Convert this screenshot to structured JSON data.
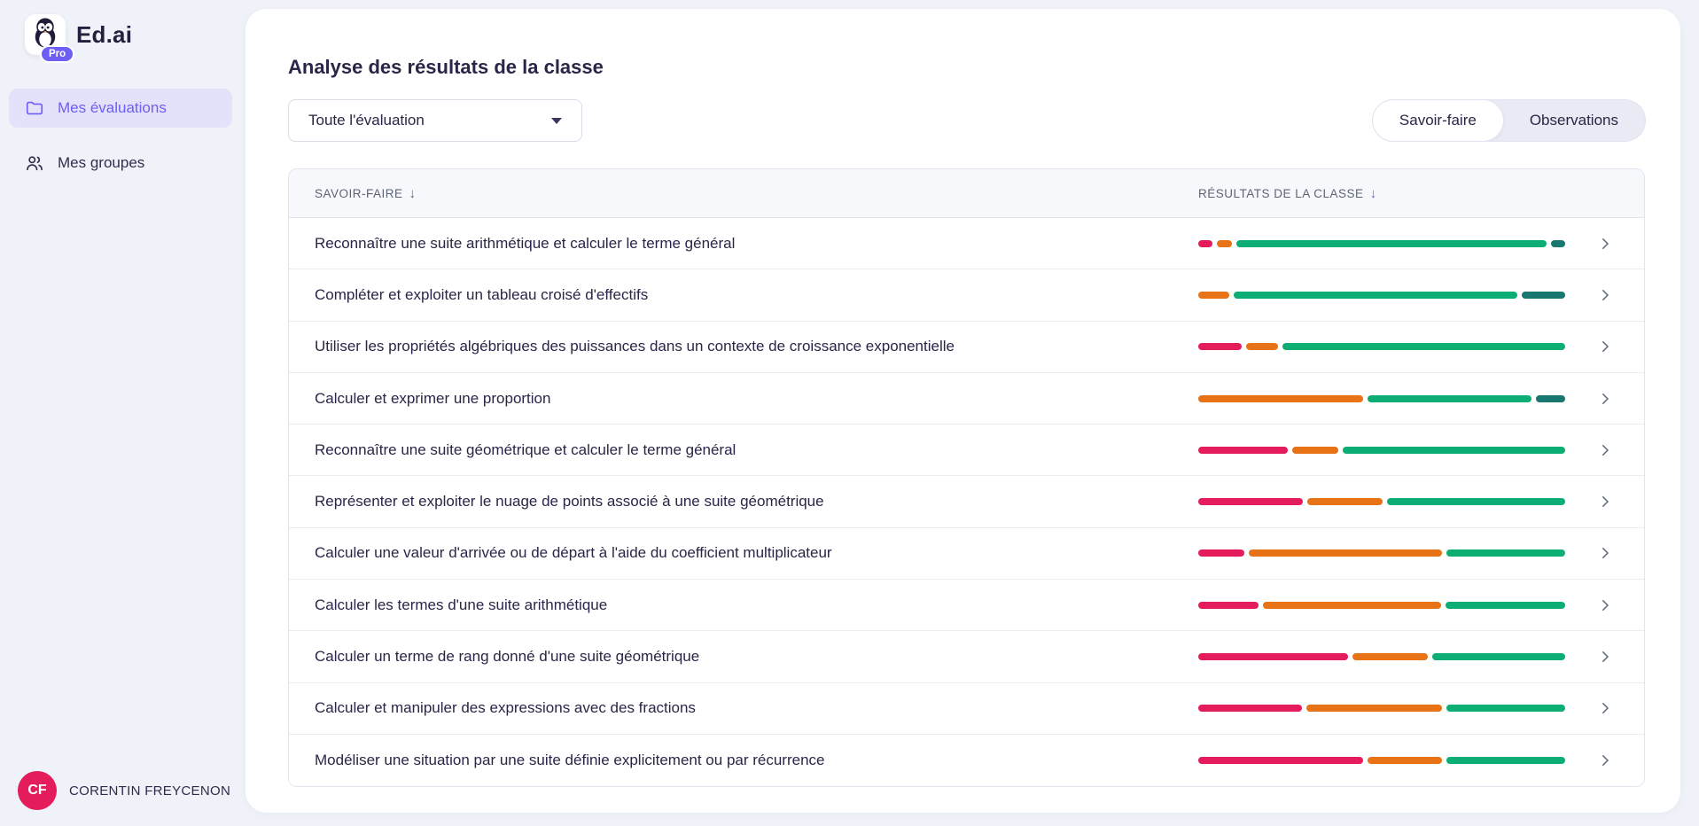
{
  "app": {
    "name": "Ed.ai",
    "badge": "Pro"
  },
  "sidebar": {
    "items": [
      {
        "label": "Mes évaluations",
        "icon": "folder-icon",
        "active": true
      },
      {
        "label": "Mes groupes",
        "icon": "users-icon",
        "active": false
      }
    ],
    "user": {
      "initials": "CF",
      "name": "CORENTIN FREYCENON"
    }
  },
  "main": {
    "title": "Analyse des résultats de la classe",
    "filter": {
      "value": "Toute l'évaluation"
    },
    "tabs": [
      {
        "label": "Savoir-faire",
        "active": true
      },
      {
        "label": "Observations",
        "active": false
      }
    ]
  },
  "table": {
    "sort_icon": "↓",
    "columns": [
      {
        "label": "Savoir-faire"
      },
      {
        "label": "Résultats de la classe"
      }
    ],
    "rows": [
      {
        "label": "Reconnaître une suite arithmétique et calculer le terme général",
        "segments": [
          {
            "level": "low",
            "pct": 4
          },
          {
            "level": "mid",
            "pct": 4
          },
          {
            "level": "high",
            "pct": 85
          },
          {
            "level": "vhigh",
            "pct": 4
          }
        ]
      },
      {
        "label": "Compléter et exploiter un tableau croisé d'effectifs",
        "segments": [
          {
            "level": "mid",
            "pct": 8.5
          },
          {
            "level": "high",
            "pct": 77.5
          },
          {
            "level": "vhigh",
            "pct": 12
          }
        ]
      },
      {
        "label": "Utiliser les propriétés algébriques des puissances dans un contexte de croissance exponentielle",
        "segments": [
          {
            "level": "low",
            "pct": 12
          },
          {
            "level": "mid",
            "pct": 8.5
          },
          {
            "level": "high",
            "pct": 77.5
          }
        ]
      },
      {
        "label": "Calculer et exprimer une proportion",
        "segments": [
          {
            "level": "mid",
            "pct": 45
          },
          {
            "level": "high",
            "pct": 44.5
          },
          {
            "level": "vhigh",
            "pct": 8
          }
        ]
      },
      {
        "label": "Reconnaître une suite géométrique et calculer le terme général",
        "segments": [
          {
            "level": "low",
            "pct": 24.5
          },
          {
            "level": "mid",
            "pct": 12.5
          },
          {
            "level": "high",
            "pct": 61
          }
        ]
      },
      {
        "label": "Représenter et exploiter le nuage de points associé à une suite géométrique",
        "segments": [
          {
            "level": "low",
            "pct": 28.5
          },
          {
            "level": "mid",
            "pct": 20.5
          },
          {
            "level": "high",
            "pct": 48.5
          }
        ]
      },
      {
        "label": "Calculer une valeur d'arrivée ou de départ à l'aide du coefficient multiplicateur",
        "segments": [
          {
            "level": "low",
            "pct": 12.5
          },
          {
            "level": "mid",
            "pct": 53
          },
          {
            "level": "high",
            "pct": 32.5
          }
        ]
      },
      {
        "label": "Calculer les termes d'une suite arithmétique",
        "segments": [
          {
            "level": "low",
            "pct": 16.5
          },
          {
            "level": "mid",
            "pct": 48.5
          },
          {
            "level": "high",
            "pct": 32.5
          }
        ]
      },
      {
        "label": "Calculer un terme de rang donné d'une suite géométrique",
        "segments": [
          {
            "level": "low",
            "pct": 41
          },
          {
            "level": "mid",
            "pct": 20.5
          },
          {
            "level": "high",
            "pct": 36.5
          }
        ]
      },
      {
        "label": "Calculer et manipuler des expressions avec des fractions",
        "segments": [
          {
            "level": "low",
            "pct": 28.5
          },
          {
            "level": "mid",
            "pct": 37
          },
          {
            "level": "high",
            "pct": 32.5
          }
        ]
      },
      {
        "label": "Modéliser une situation par une suite définie explicitement ou par récurrence",
        "segments": [
          {
            "level": "low",
            "pct": 45
          },
          {
            "level": "mid",
            "pct": 20.5
          },
          {
            "level": "high",
            "pct": 32.5
          }
        ]
      }
    ]
  },
  "colors": {
    "low": "#E41C5C",
    "mid": "#E87317",
    "high": "#0DAE74",
    "vhigh": "#18786F",
    "accent": "#6D5EF5"
  }
}
